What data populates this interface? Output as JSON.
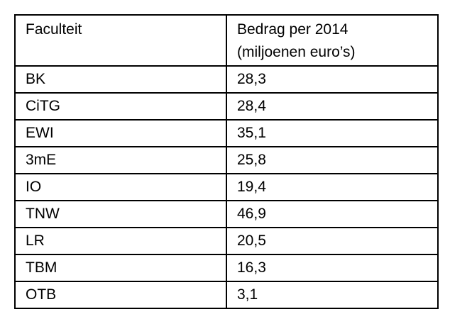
{
  "table": {
    "header": {
      "col1": "Faculteit",
      "col2_line1": "Bedrag per 2014",
      "col2_line2": "(miljoenen euro’s)"
    },
    "rows": [
      {
        "name": "BK",
        "value": "28,3"
      },
      {
        "name": "CiTG",
        "value": "28,4"
      },
      {
        "name": "EWI",
        "value": "35,1"
      },
      {
        "name": "3mE",
        "value": "25,8"
      },
      {
        "name": "IO",
        "value": "19,4"
      },
      {
        "name": "TNW",
        "value": "46,9"
      },
      {
        "name": "LR",
        "value": "20,5"
      },
      {
        "name": "TBM",
        "value": "16,3"
      },
      {
        "name": "OTB",
        "value": "3,1"
      }
    ]
  },
  "chart_data": {
    "type": "table",
    "title": "Bedrag per 2014 (miljoenen euro's) per faculteit",
    "categories": [
      "BK",
      "CiTG",
      "EWI",
      "3mE",
      "IO",
      "TNW",
      "LR",
      "TBM",
      "OTB"
    ],
    "values": [
      28.3,
      28.4,
      35.1,
      25.8,
      19.4,
      46.9,
      20.5,
      16.3,
      3.1
    ],
    "columns": [
      "Faculteit",
      "Bedrag per 2014 (miljoenen euro’s)"
    ]
  },
  "colors": {
    "border": "#000000",
    "text": "#000000",
    "background": "#ffffff"
  }
}
